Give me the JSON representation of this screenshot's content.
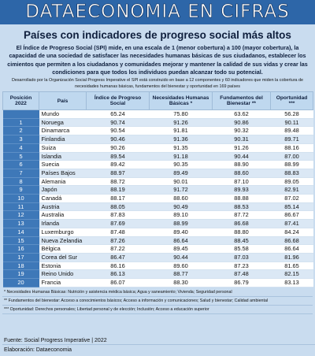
{
  "header": {
    "title": "DATAECONOMIA EN CIFRAS",
    "subtitle": "Países con indicadores de progreso social más altos"
  },
  "intro": "El Índice de Progreso Social (SPI) mide, en una escala de 1 (menor cobertura) a 100 (mayor cobertura), la capacidad de una sociedad de satisfacer las necesidades humanas básicas de sus ciudadanos, establecer los cimientos que permiten a los ciudadanos y comunidades mejorar y mantener la calidad de sus vidas y crear las condiciones para que todos los individuos puedan alcanzar todo su potencial.",
  "note": "Desarrollado por la Organización Social Progress Imperative el SPI está construido en base a 12 componentes y 60 indicadores que miden la cobertura de necesidades humanas básicas, fundamentos del bienestar y oportunidad en 169 países",
  "table": {
    "columns": [
      "Posición 2022",
      "País",
      "Índice de Progreso Social",
      "Necesidades Humanas Básicas *",
      "Fundamentos del Bienestar **",
      "Oportunidad ***"
    ],
    "rows": [
      [
        "",
        "Mundo",
        "65.24",
        "75.80",
        "63.62",
        "56.28"
      ],
      [
        "1",
        "Noruega",
        "90.74",
        "91.26",
        "90.86",
        "90.11"
      ],
      [
        "2",
        "Dinamarca",
        "90.54",
        "91.81",
        "90.32",
        "89.48"
      ],
      [
        "3",
        "Finlandia",
        "90.46",
        "91.36",
        "90.31",
        "89.71"
      ],
      [
        "4",
        "Suiza",
        "90.26",
        "91.35",
        "91.26",
        "88.16"
      ],
      [
        "5",
        "Islandia",
        "89.54",
        "91.18",
        "90.44",
        "87.00"
      ],
      [
        "6",
        "Suecia",
        "89.42",
        "90.35",
        "88.90",
        "88.99"
      ],
      [
        "7",
        "Países Bajos",
        "88.97",
        "89.49",
        "88.60",
        "88.83"
      ],
      [
        "8",
        "Alemania",
        "88.72",
        "90.01",
        "87.10",
        "89.05"
      ],
      [
        "9",
        "Japón",
        "88.19",
        "91.72",
        "89.93",
        "82.91"
      ],
      [
        "10",
        "Canadá",
        "88.17",
        "88.60",
        "88.88",
        "87.02"
      ],
      [
        "11",
        "Austria",
        "88.05",
        "90.49",
        "88.53",
        "85.14"
      ],
      [
        "12",
        "Australia",
        "87.83",
        "89.10",
        "87.72",
        "86.67"
      ],
      [
        "13",
        "Irlanda",
        "87.69",
        "88.99",
        "86.68",
        "87.41"
      ],
      [
        "14",
        "Luxemburgo",
        "87.48",
        "89.40",
        "88.80",
        "84.24"
      ],
      [
        "15",
        "Nueva Zelandia",
        "87.26",
        "86.64",
        "88.45",
        "86.68"
      ],
      [
        "16",
        "Bélgica",
        "87.22",
        "89.45",
        "85.58",
        "86.64"
      ],
      [
        "17",
        "Corea del Sur",
        "86.47",
        "90.44",
        "87.03",
        "81.96"
      ],
      [
        "18",
        "Estonia",
        "86.16",
        "89.60",
        "87.23",
        "81.65"
      ],
      [
        "19",
        "Reino Unido",
        "86.13",
        "88.77",
        "87.48",
        "82.15"
      ],
      [
        "20",
        "Francia",
        "86.07",
        "88.30",
        "86.79",
        "83.13"
      ]
    ]
  },
  "footnotes": [
    "* Necesidades Humanas Básicas: Nutrición y asistencia médica básica; Agua y saneamiento; Vivienda; Seguridad personal",
    "** Fundamentos del bienestar: Acceso a conocimientos básicos; Acceso a información y comunicaciones; Salud y bienestar; Calidad ambiental",
    "*** Oportunidad: Derechos personales; Libertad personal y de elección; Inclusión; Acceso a educación superior"
  ],
  "source": "Fuente: Social Progress Imperative | 2022",
  "credit": "Elaboración: Dataeconomia"
}
